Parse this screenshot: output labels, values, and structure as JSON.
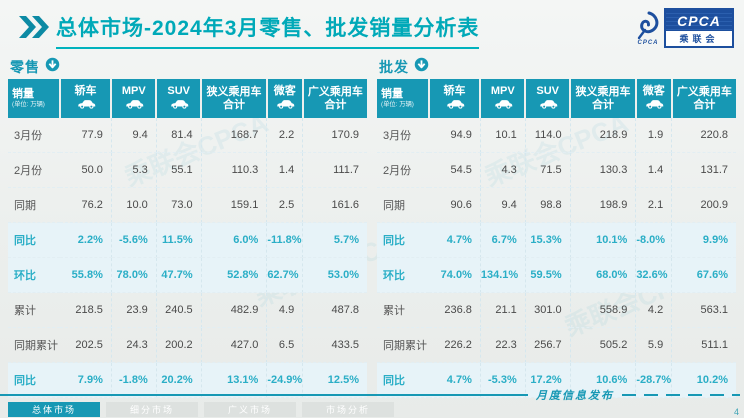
{
  "header": {
    "title": "总体市场-2024年3月零售、批发销量分析表",
    "logo": {
      "main": "CPCA",
      "org": "乘联会",
      "swirl_caption": "CPCA"
    }
  },
  "table_columns": {
    "sales": "销量",
    "unit": "(单位: 万辆)",
    "cols": [
      {
        "label": "轿车",
        "icon": "sedan-icon"
      },
      {
        "label": "MPV",
        "icon": "mpv-icon"
      },
      {
        "label": "SUV",
        "icon": "suv-icon"
      },
      {
        "label": "狭义乘用车",
        "label2": "合计"
      },
      {
        "label": "微客",
        "icon": "minibus-icon"
      },
      {
        "label": "广义乘用车",
        "label2": "合计"
      }
    ]
  },
  "row_labels": [
    "3月份",
    "2月份",
    "同期",
    "同比",
    "环比",
    "累计",
    "同期累计",
    "同比"
  ],
  "retail": {
    "title": "零售",
    "rows": [
      [
        "77.9",
        "9.4",
        "81.4",
        "168.7",
        "2.2",
        "170.9"
      ],
      [
        "50.0",
        "5.3",
        "55.1",
        "110.3",
        "1.4",
        "111.7"
      ],
      [
        "76.2",
        "10.0",
        "73.0",
        "159.1",
        "2.5",
        "161.6"
      ],
      [
        "2.2%",
        "-5.6%",
        "11.5%",
        "6.0%",
        "-11.8%",
        "5.7%"
      ],
      [
        "55.8%",
        "78.0%",
        "47.7%",
        "52.8%",
        "62.7%",
        "53.0%"
      ],
      [
        "218.5",
        "23.9",
        "240.5",
        "482.9",
        "4.9",
        "487.8"
      ],
      [
        "202.5",
        "24.3",
        "200.2",
        "427.0",
        "6.5",
        "433.5"
      ],
      [
        "7.9%",
        "-1.8%",
        "20.2%",
        "13.1%",
        "-24.9%",
        "12.5%"
      ]
    ]
  },
  "wholesale": {
    "title": "批发",
    "rows": [
      [
        "94.9",
        "10.1",
        "114.0",
        "218.9",
        "1.9",
        "220.8"
      ],
      [
        "54.5",
        "4.3",
        "71.5",
        "130.3",
        "1.4",
        "131.7"
      ],
      [
        "90.6",
        "9.4",
        "98.8",
        "198.9",
        "2.1",
        "200.9"
      ],
      [
        "4.7%",
        "6.7%",
        "15.3%",
        "10.1%",
        "-8.0%",
        "9.9%"
      ],
      [
        "74.0%",
        "134.1%",
        "59.5%",
        "68.0%",
        "32.6%",
        "67.6%"
      ],
      [
        "236.8",
        "21.1",
        "301.0",
        "558.9",
        "4.2",
        "563.1"
      ],
      [
        "226.2",
        "22.3",
        "256.7",
        "505.2",
        "5.9",
        "511.1"
      ],
      [
        "4.7%",
        "-5.3%",
        "17.2%",
        "10.6%",
        "-28.7%",
        "10.2%"
      ]
    ]
  },
  "footer": {
    "tabs": [
      {
        "label": "总体市场",
        "active": true
      },
      {
        "label": "细分市场",
        "active": false
      },
      {
        "label": "广义市场",
        "active": false
      },
      {
        "label": "市场分析",
        "active": false
      }
    ],
    "publish_label": "月度信息发布",
    "page": "4"
  },
  "watermark_text": "乘联会CPCA",
  "colors": {
    "accent_teal": "#1798b4",
    "title_teal": "#00a9b8",
    "pct_text": "#2aaec6",
    "pct_row_bg": "#e7f3f8",
    "logo_blue": "#1d4f9e"
  }
}
